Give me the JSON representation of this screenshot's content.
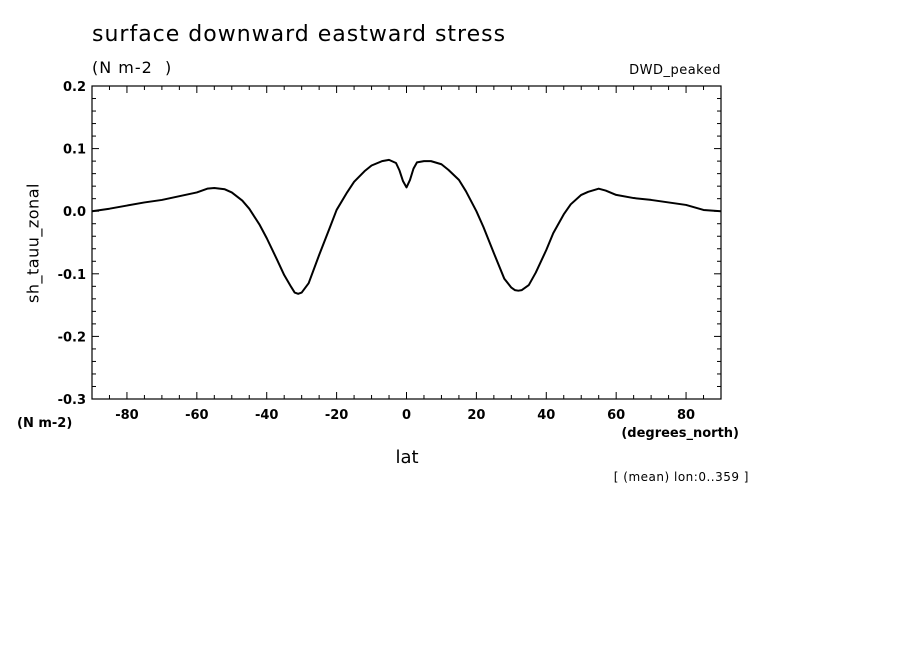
{
  "chart_data": {
    "type": "line",
    "title": "surface downward eastward stress",
    "title_units": "(N m-2  )",
    "dataset_label": "DWD_peaked",
    "ylabel": "sh_tauu_zonal",
    "y_units": "(N m-2)",
    "xlabel": "lat",
    "x_units": "(degrees_north)",
    "note": "[ (mean) lon:0..359 ]",
    "xlim": [
      -90,
      90
    ],
    "ylim": [
      -0.3,
      0.2
    ],
    "x_ticks": [
      -80,
      -60,
      -40,
      -20,
      0,
      20,
      40,
      60,
      80
    ],
    "x_tick_labels": [
      "-80",
      "-60",
      "-40",
      "-20",
      "0",
      "20",
      "40",
      "60",
      "80"
    ],
    "y_ticks": [
      -0.3,
      -0.2,
      -0.1,
      0.0,
      0.1,
      0.2
    ],
    "y_tick_labels": [
      "-0.3",
      "-0.2",
      "-0.1",
      "0.0",
      "0.1",
      "0.2"
    ],
    "grid": false,
    "line_color": "#000000",
    "series": [
      {
        "x": [
          -90,
          -85,
          -80,
          -75,
          -70,
          -65,
          -60,
          -57,
          -55,
          -52,
          -50,
          -47,
          -45,
          -42,
          -40,
          -37,
          -35,
          -33,
          -32,
          -31,
          -30,
          -28,
          -25,
          -22,
          -20,
          -17,
          -15,
          -12,
          -10,
          -7,
          -5,
          -3,
          -2,
          -1,
          0,
          1,
          2,
          3,
          5,
          7,
          10,
          12,
          15,
          17,
          20,
          22,
          25,
          28,
          30,
          31,
          32,
          33,
          35,
          37,
          40,
          42,
          45,
          47,
          50,
          52,
          55,
          57,
          60,
          65,
          70,
          75,
          80,
          85,
          90
        ],
        "y": [
          0.0,
          0.004,
          0.009,
          0.014,
          0.018,
          0.024,
          0.03,
          0.036,
          0.037,
          0.035,
          0.03,
          0.017,
          0.004,
          -0.022,
          -0.043,
          -0.078,
          -0.102,
          -0.121,
          -0.13,
          -0.132,
          -0.13,
          -0.115,
          -0.07,
          -0.027,
          0.002,
          0.03,
          0.047,
          0.064,
          0.073,
          0.08,
          0.082,
          0.077,
          0.065,
          0.048,
          0.038,
          0.05,
          0.068,
          0.078,
          0.08,
          0.08,
          0.075,
          0.066,
          0.05,
          0.032,
          0.0,
          -0.025,
          -0.067,
          -0.108,
          -0.122,
          -0.126,
          -0.127,
          -0.126,
          -0.118,
          -0.098,
          -0.062,
          -0.035,
          -0.005,
          0.011,
          0.026,
          0.031,
          0.036,
          0.033,
          0.026,
          0.021,
          0.018,
          0.014,
          0.01,
          0.002,
          0.0
        ]
      }
    ]
  }
}
